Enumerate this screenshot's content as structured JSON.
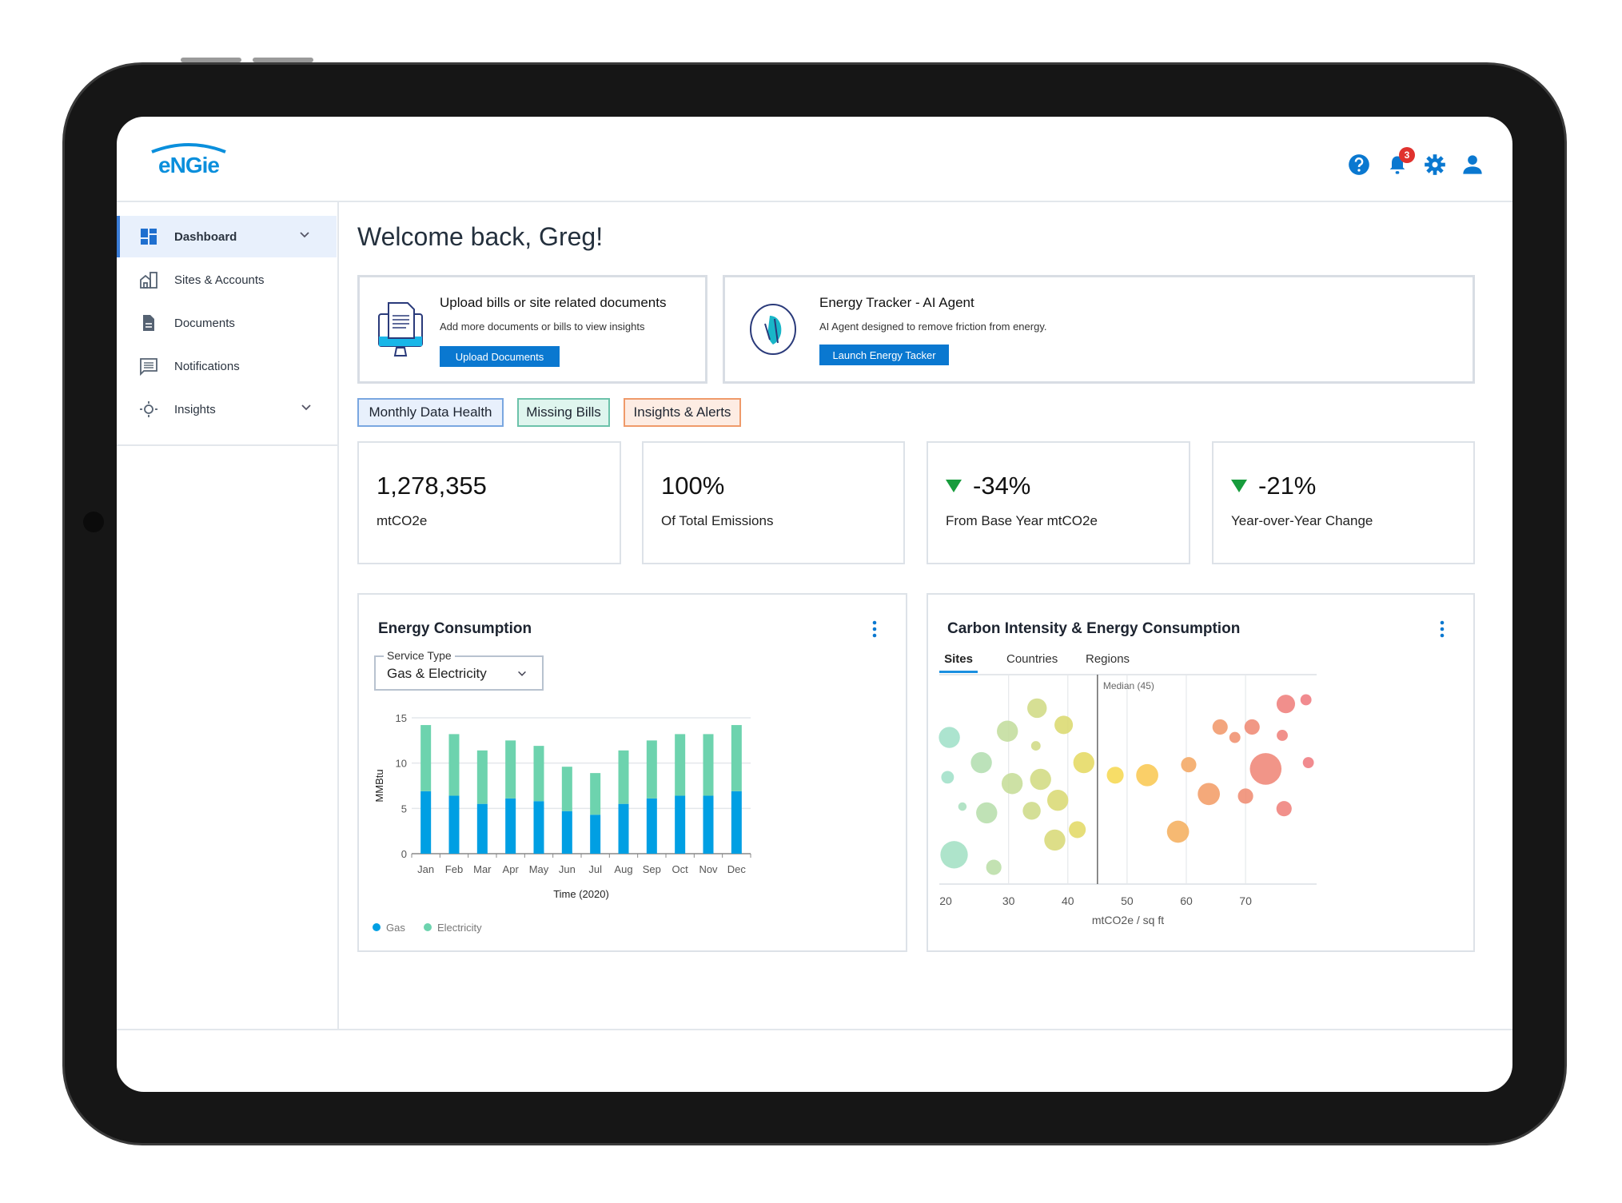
{
  "brand": {
    "logo_text": "engie",
    "color": "#0a8fdc"
  },
  "header": {
    "icons": [
      "help-icon",
      "bell-icon",
      "gear-icon",
      "user-icon"
    ],
    "notification_count": "3",
    "accent": "#0a78d0",
    "badge_color": "#e0322e"
  },
  "sidebar": {
    "items": [
      {
        "label": "Dashboard",
        "icon": "dashboard-icon",
        "active": true,
        "expandable": true
      },
      {
        "label": "Sites & Accounts",
        "icon": "building-icon"
      },
      {
        "label": "Documents",
        "icon": "document-icon"
      },
      {
        "label": "Notifications",
        "icon": "message-icon"
      },
      {
        "label": "Insights",
        "icon": "lightbulb-icon",
        "expandable": true
      }
    ]
  },
  "main": {
    "title": "Welcome back, Greg!",
    "upload_card": {
      "title": "Upload bills or site related documents",
      "subtitle": "Add more documents or bills to view insights",
      "button": "Upload Documents"
    },
    "agent_card": {
      "title": "Energy Tracker - AI Agent",
      "subtitle": "AI Agent designed to remove friction from energy.",
      "button": "Launch Energy Tacker"
    },
    "pills": [
      {
        "label": "Monthly Data Health",
        "bg": "#e8f0fc",
        "border": "#7aa7e0"
      },
      {
        "label": "Missing Bills",
        "bg": "#dff5ee",
        "border": "#6cc2aa"
      },
      {
        "label": "Insights & Alerts",
        "bg": "#fdece3",
        "border": "#ef9a6a"
      }
    ],
    "kpis": [
      {
        "value": "1,278,355",
        "label": "mtCO2e",
        "trend": "none"
      },
      {
        "value": "100%",
        "label": "Of Total Emissions",
        "trend": "none"
      },
      {
        "value": "-34%",
        "label": "From Base Year mtCO2e",
        "trend": "down"
      },
      {
        "value": "-21%",
        "label": "Year-over-Year Change",
        "trend": "down"
      }
    ]
  },
  "energy_panel": {
    "title": "Energy Consumption",
    "select_label": "Service Type",
    "select_value": "Gas & Electricity"
  },
  "carbon_panel": {
    "title": "Carbon Intensity & Energy Consumption",
    "tabs": [
      "Sites",
      "Countries",
      "Regions"
    ],
    "active_tab": "Sites"
  },
  "chart_data": [
    {
      "type": "bar",
      "stacked": true,
      "categories": [
        "Jan",
        "Feb",
        "Mar",
        "Apr",
        "May",
        "Jun",
        "Jul",
        "Aug",
        "Sep",
        "Oct",
        "Nov",
        "Dec"
      ],
      "series": [
        {
          "name": "Gas",
          "color": "#009fe3",
          "values": [
            6.9,
            6.4,
            5.5,
            6.1,
            5.8,
            4.7,
            4.3,
            5.5,
            6.1,
            6.4,
            6.4,
            6.9
          ]
        },
        {
          "name": "Electricity",
          "color": "#6dd3ae",
          "values": [
            7.3,
            6.8,
            5.9,
            6.4,
            6.1,
            4.9,
            4.6,
            5.9,
            6.4,
            6.8,
            6.8,
            7.3
          ]
        }
      ],
      "xlabel": "Time (2020)",
      "ylabel": "MMBtu",
      "ylim": [
        0,
        15
      ],
      "yticks": [
        0,
        5,
        10,
        15
      ],
      "grid": true,
      "legend": "bottom-left"
    },
    {
      "type": "scatter",
      "bubble": true,
      "xlabel": "mtCO2e / sq ft",
      "xticks": [
        20,
        30,
        40,
        50,
        60,
        70
      ],
      "xlim": [
        18.3,
        82
      ],
      "ylim": [
        0,
        100
      ],
      "median": {
        "value": 45,
        "label": "Median (45)"
      },
      "color_stops": [
        "#a0e0c8",
        "#c4dd9c",
        "#ddd96c",
        "#fcd84c",
        "#f4a862",
        "#ef8c72",
        "#ef7b80"
      ],
      "points": [
        {
          "x": 20.0,
          "y": 70,
          "size": 4.0
        },
        {
          "x": 25.4,
          "y": 58,
          "size": 4.0
        },
        {
          "x": 19.7,
          "y": 51,
          "size": 2.4
        },
        {
          "x": 22.2,
          "y": 37,
          "size": 1.6
        },
        {
          "x": 26.3,
          "y": 34,
          "size": 4.0
        },
        {
          "x": 20.8,
          "y": 14,
          "size": 5.2
        },
        {
          "x": 27.5,
          "y": 8,
          "size": 2.9
        },
        {
          "x": 29.8,
          "y": 73,
          "size": 4.0
        },
        {
          "x": 34.8,
          "y": 84,
          "size": 3.7
        },
        {
          "x": 34.6,
          "y": 66,
          "size": 1.8
        },
        {
          "x": 30.6,
          "y": 48,
          "size": 4.0
        },
        {
          "x": 35.4,
          "y": 50,
          "size": 4.0
        },
        {
          "x": 33.9,
          "y": 35,
          "size": 3.4
        },
        {
          "x": 37.8,
          "y": 21,
          "size": 4.0
        },
        {
          "x": 39.3,
          "y": 76,
          "size": 3.5
        },
        {
          "x": 42.7,
          "y": 58,
          "size": 4.0
        },
        {
          "x": 38.3,
          "y": 40,
          "size": 4.0
        },
        {
          "x": 41.6,
          "y": 26,
          "size": 3.2
        },
        {
          "x": 48.0,
          "y": 52,
          "size": 3.2
        },
        {
          "x": 53.4,
          "y": 52,
          "size": 4.2
        },
        {
          "x": 60.4,
          "y": 57,
          "size": 2.9
        },
        {
          "x": 58.6,
          "y": 25,
          "size": 4.2
        },
        {
          "x": 65.7,
          "y": 75,
          "size": 2.9
        },
        {
          "x": 68.2,
          "y": 70,
          "size": 2.1
        },
        {
          "x": 71.1,
          "y": 75,
          "size": 2.9
        },
        {
          "x": 76.8,
          "y": 86,
          "size": 3.5
        },
        {
          "x": 80.2,
          "y": 88,
          "size": 2.1
        },
        {
          "x": 76.2,
          "y": 71,
          "size": 2.1
        },
        {
          "x": 73.4,
          "y": 55,
          "size": 6.0
        },
        {
          "x": 80.6,
          "y": 58,
          "size": 2.1
        },
        {
          "x": 63.8,
          "y": 43,
          "size": 4.2
        },
        {
          "x": 70.0,
          "y": 42,
          "size": 2.9
        },
        {
          "x": 76.5,
          "y": 36,
          "size": 2.9
        }
      ]
    }
  ]
}
